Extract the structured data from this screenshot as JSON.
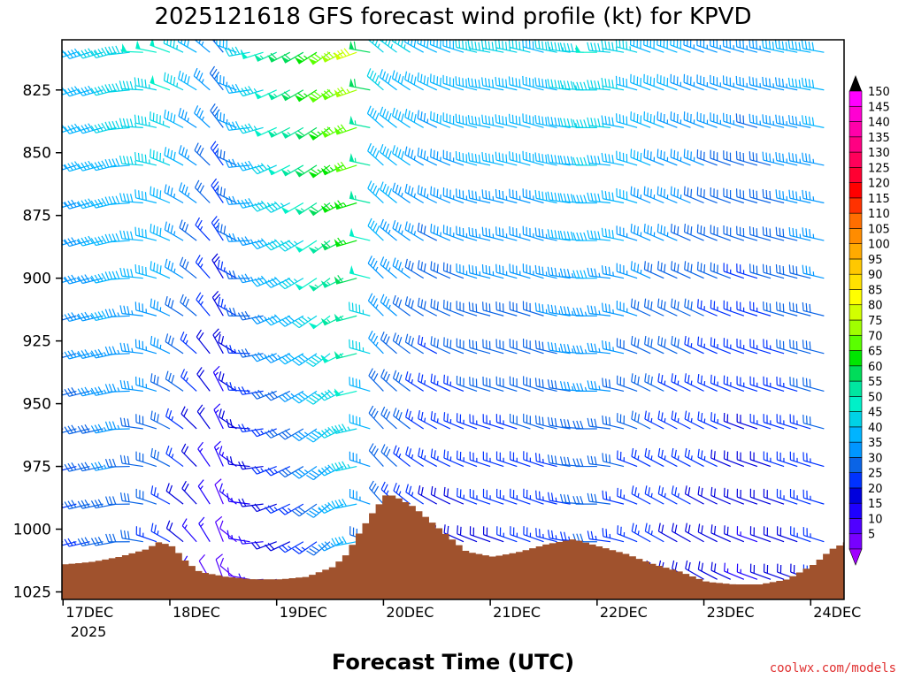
{
  "chart_data": {
    "type": "wind-profile",
    "title": "2025121618 GFS forecast wind profile (kt) for KPVD",
    "xlabel": "Forecast Time (UTC)",
    "ylabel": "",
    "credit": "coolwx.com/models",
    "x_unit": "hours since 2025-12-17 00Z",
    "xlim": [
      -0.25,
      175.5
    ],
    "ylim_hpa": [
      805,
      1028
    ],
    "x_ticks": [
      {
        "label": "17DEC",
        "hour": 0
      },
      {
        "label": "18DEC",
        "hour": 24
      },
      {
        "label": "19DEC",
        "hour": 48
      },
      {
        "label": "20DEC",
        "hour": 72
      },
      {
        "label": "21DEC",
        "hour": 96
      },
      {
        "label": "22DEC",
        "hour": 120
      },
      {
        "label": "23DEC",
        "hour": 144
      },
      {
        "label": "24DEC",
        "hour": 168
      }
    ],
    "year_label": "2025",
    "y_ticks": [
      825,
      850,
      875,
      900,
      925,
      950,
      975,
      1000,
      1025
    ],
    "levels_hpa": [
      810,
      825,
      840,
      855,
      870,
      885,
      900,
      915,
      930,
      945,
      960,
      975,
      990,
      1005,
      1020
    ],
    "barb_times_hours": [
      0,
      3,
      6,
      9,
      12,
      15,
      18,
      21,
      24,
      27,
      30,
      33,
      36,
      39,
      42,
      45,
      48,
      51,
      54,
      57,
      60,
      63,
      66,
      69,
      72,
      75,
      78,
      81,
      84,
      87,
      90,
      93,
      96,
      99,
      102,
      105,
      108,
      111,
      114,
      117,
      120,
      123,
      126,
      129,
      132,
      135,
      138,
      141,
      144,
      147,
      150,
      153,
      156,
      159,
      162,
      165,
      168,
      171
    ],
    "wind_profile": {
      "description": "speed (kt) and direction (deg from) per time, varying with height",
      "times_hours": [
        0,
        12,
        24,
        30,
        36,
        42,
        48,
        54,
        60,
        66,
        72,
        84,
        96,
        108,
        120,
        132,
        144,
        156,
        168,
        175
      ],
      "speed_surface": [
        22,
        30,
        22,
        15,
        8,
        12,
        16,
        20,
        28,
        35,
        25,
        18,
        20,
        22,
        26,
        22,
        20,
        16,
        22,
        25
      ],
      "speed_aloft": [
        38,
        45,
        50,
        40,
        32,
        44,
        55,
        62,
        72,
        78,
        45,
        40,
        44,
        42,
        48,
        42,
        36,
        35,
        40,
        42
      ],
      "dir_surface": [
        255,
        260,
        300,
        320,
        340,
        280,
        250,
        240,
        230,
        260,
        320,
        300,
        290,
        290,
        270,
        300,
        300,
        290,
        290,
        285
      ],
      "dir_aloft": [
        250,
        255,
        290,
        300,
        320,
        260,
        245,
        240,
        235,
        250,
        310,
        295,
        280,
        285,
        270,
        290,
        290,
        285,
        280,
        280
      ]
    },
    "surface_pressure": {
      "times_hours": [
        0,
        6,
        12,
        18,
        21,
        24,
        27,
        30,
        36,
        42,
        48,
        54,
        60,
        63,
        66,
        69,
        72,
        74,
        78,
        84,
        90,
        96,
        102,
        108,
        114,
        120,
        126,
        132,
        138,
        144,
        150,
        156,
        162,
        168,
        172,
        175.5
      ],
      "values_hpa": [
        1014,
        1013,
        1011,
        1008,
        1005,
        1007,
        1013,
        1017,
        1019,
        1020,
        1020,
        1019,
        1015,
        1010,
        1001,
        993,
        986,
        987,
        991,
        1000,
        1009,
        1011,
        1009,
        1006,
        1004,
        1007,
        1010,
        1014,
        1017,
        1021,
        1022,
        1022,
        1020,
        1014,
        1008,
        1005
      ],
      "fill": "#a0522d"
    },
    "colorbar": {
      "labels": [
        "5",
        "10",
        "15",
        "20",
        "25",
        "30",
        "35",
        "40",
        "45",
        "50",
        "55",
        "60",
        "65",
        "70",
        "75",
        "80",
        "85",
        "90",
        "95",
        "100",
        "105",
        "110",
        "115",
        "120",
        "125",
        "130",
        "135",
        "140",
        "145",
        "150"
      ],
      "colors": [
        "#7800ff",
        "#5000ff",
        "#1e00ff",
        "#0000dc",
        "#0032ff",
        "#0a64e6",
        "#0096ff",
        "#00b4ff",
        "#00d2e6",
        "#00f0c8",
        "#00e6a0",
        "#00dc5a",
        "#00e600",
        "#5aff00",
        "#a0ff00",
        "#d2ff00",
        "#ffff00",
        "#ffe100",
        "#ffc800",
        "#ffaa00",
        "#ff8c00",
        "#ff6e00",
        "#ff3200",
        "#ff0000",
        "#ff0032",
        "#ff005a",
        "#ff0082",
        "#ff00aa",
        "#ff00d2",
        "#ff00ff"
      ],
      "under_color": "#a000ff",
      "over_color": "#000000"
    }
  }
}
